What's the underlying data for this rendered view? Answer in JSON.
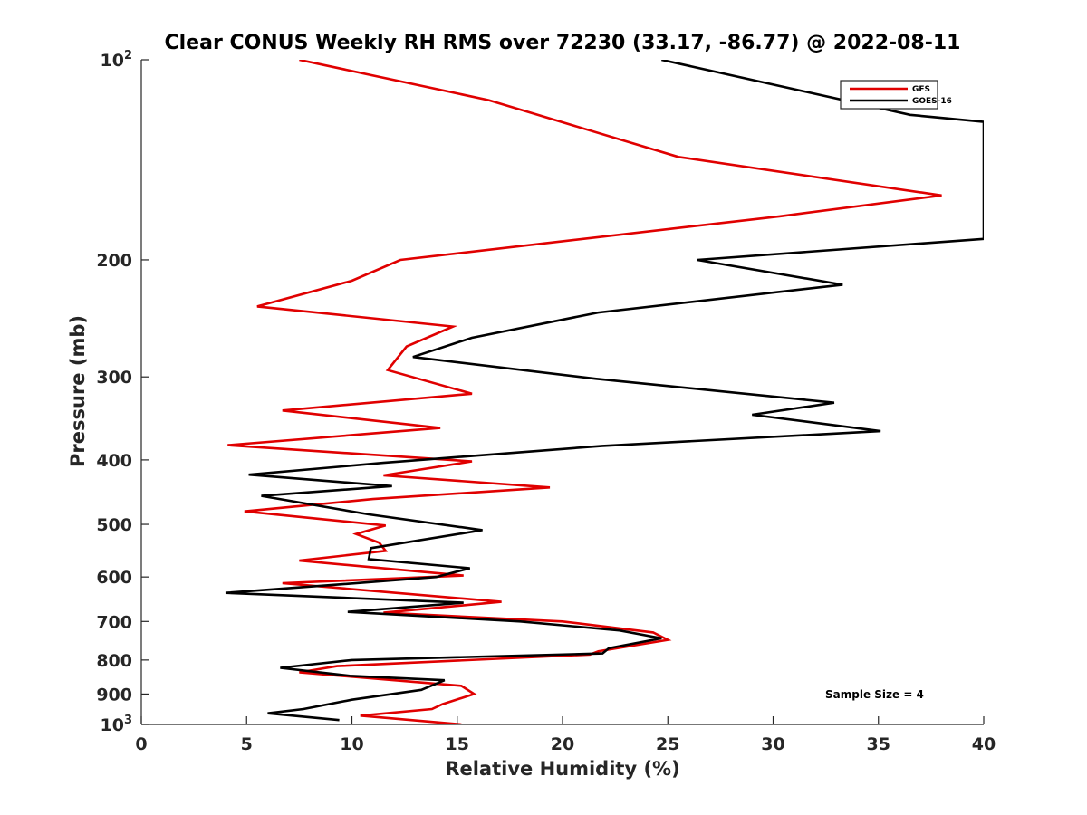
{
  "chart_data": {
    "type": "line",
    "title": "Clear CONUS Weekly RH RMS over 72230 (33.17, -86.77) @ 2022-08-11",
    "xlabel": "Relative Humidity (%)",
    "ylabel": "Pressure (mb)",
    "xlim": [
      0,
      40
    ],
    "ylim": [
      100,
      1000
    ],
    "yscale": "log",
    "yreversed": true,
    "x_ticks": [
      "0",
      "5",
      "10",
      "15",
      "20",
      "25",
      "30",
      "35",
      "40"
    ],
    "x_tick_values": [
      0,
      5,
      10,
      15,
      20,
      25,
      30,
      35,
      40
    ],
    "y_ticks": [
      {
        "value": 100,
        "base": "10",
        "exp": "2"
      },
      {
        "value": 200,
        "base": "200",
        "exp": ""
      },
      {
        "value": 300,
        "base": "300",
        "exp": ""
      },
      {
        "value": 400,
        "base": "400",
        "exp": ""
      },
      {
        "value": 500,
        "base": "500",
        "exp": ""
      },
      {
        "value": 600,
        "base": "600",
        "exp": ""
      },
      {
        "value": 700,
        "base": "700",
        "exp": ""
      },
      {
        "value": 800,
        "base": "800",
        "exp": ""
      },
      {
        "value": 900,
        "base": "900",
        "exp": ""
      },
      {
        "value": 1000,
        "base": "10",
        "exp": "3"
      }
    ],
    "legend_position": "top-right",
    "annotation": "Sample Size = 4",
    "series": [
      {
        "name": "GFS",
        "color": "#e00000",
        "points": [
          [
            7.5,
            100
          ],
          [
            16.5,
            115
          ],
          [
            25.5,
            140
          ],
          [
            38,
            160
          ],
          [
            30.3,
            172
          ],
          [
            12.3,
            200
          ],
          [
            10,
            215
          ],
          [
            5.5,
            235
          ],
          [
            14.8,
            252
          ],
          [
            12.6,
            270
          ],
          [
            11.7,
            293
          ],
          [
            15.7,
            318
          ],
          [
            6.7,
            337
          ],
          [
            14.2,
            358
          ],
          [
            4.1,
            380
          ],
          [
            15.7,
            402
          ],
          [
            11.5,
            422
          ],
          [
            19.4,
            440
          ],
          [
            11,
            458
          ],
          [
            4.9,
            478
          ],
          [
            11.6,
            502
          ],
          [
            10.2,
            517
          ],
          [
            11.3,
            533
          ],
          [
            11.6,
            548
          ],
          [
            7.5,
            567
          ],
          [
            15.3,
            597
          ],
          [
            6.7,
            613
          ],
          [
            17.1,
            654
          ],
          [
            11.5,
            679
          ],
          [
            20,
            700
          ],
          [
            24.3,
            727
          ],
          [
            25,
            746
          ],
          [
            21.7,
            776
          ],
          [
            21.3,
            785
          ],
          [
            9.3,
            817
          ],
          [
            7.5,
            835
          ],
          [
            15.2,
            875
          ],
          [
            15.8,
            900
          ],
          [
            14.3,
            932
          ],
          [
            13.8,
            948
          ],
          [
            10.4,
            970
          ],
          [
            15.2,
            1000
          ]
        ]
      },
      {
        "name": "GOES-16",
        "color": "#000000",
        "points": [
          [
            24.7,
            100
          ],
          [
            36.5,
            121
          ],
          [
            40,
            124
          ],
          [
            40,
            186
          ],
          [
            26.4,
            200
          ],
          [
            33.3,
            218
          ],
          [
            21.7,
            240
          ],
          [
            15.7,
            262
          ],
          [
            12.9,
            280
          ],
          [
            21.6,
            302
          ],
          [
            32.9,
            328
          ],
          [
            29,
            342
          ],
          [
            35.1,
            362
          ],
          [
            21.9,
            381
          ],
          [
            11.5,
            404
          ],
          [
            5.1,
            421
          ],
          [
            11.9,
            438
          ],
          [
            5.7,
            453
          ],
          [
            10.8,
            483
          ],
          [
            16.2,
            510
          ],
          [
            10.9,
            543
          ],
          [
            10.8,
            564
          ],
          [
            15.6,
            582
          ],
          [
            14,
            600
          ],
          [
            9,
            617
          ],
          [
            4,
            634
          ],
          [
            15.3,
            656
          ],
          [
            9.8,
            677
          ],
          [
            18,
            700
          ],
          [
            22.7,
            722
          ],
          [
            24.7,
            742
          ],
          [
            22.2,
            768
          ],
          [
            21.9,
            782
          ],
          [
            10,
            800
          ],
          [
            6.6,
            822
          ],
          [
            9.9,
            845
          ],
          [
            14.4,
            858
          ],
          [
            13.3,
            887
          ],
          [
            10,
            918
          ],
          [
            7.7,
            948
          ],
          [
            6,
            962
          ],
          [
            9.4,
            985
          ]
        ]
      }
    ]
  }
}
